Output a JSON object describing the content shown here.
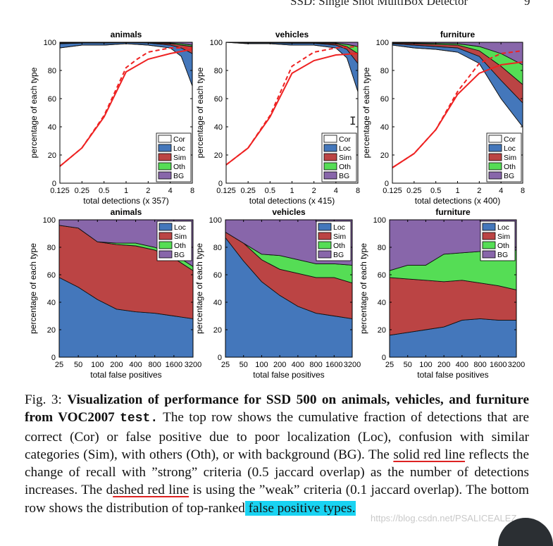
{
  "page_header": {
    "running_title": "SSD: Single Shot MultiBox Detector",
    "page_number": "9"
  },
  "colors": {
    "Cor": "#ffffff",
    "Loc": "#4477bb",
    "Sim": "#bb4444",
    "Oth": "#55dd55",
    "BG": "#8866aa",
    "recall": "#ee2222"
  },
  "chart_data": [
    {
      "type": "area",
      "row": "top",
      "title": "animals",
      "xlabel": "total detections (x 357)",
      "ylabel": "percentage of each type",
      "x_tick_labels": [
        "0.125",
        "0.25",
        "0.5",
        "1",
        "2",
        "4",
        "8"
      ],
      "x_log2": [
        -3,
        -2,
        -1,
        0,
        1,
        2,
        3
      ],
      "ylim": [
        0,
        100
      ],
      "y_ticks": [
        0,
        20,
        40,
        60,
        80,
        100
      ],
      "legend": [
        "Cor",
        "Loc",
        "Sim",
        "Oth",
        "BG"
      ],
      "legend_position": "bottom-right",
      "x": [
        -3,
        -2,
        -1,
        0,
        1,
        2,
        2.5,
        3
      ],
      "series": [
        {
          "name": "Cor",
          "values": [
            96,
            98,
            98,
            99,
            98,
            96,
            90,
            69
          ]
        },
        {
          "name": "Loc",
          "values": [
            3,
            1.5,
            1.5,
            0.8,
            1.5,
            2,
            6,
            23
          ]
        },
        {
          "name": "Sim",
          "values": [
            0.5,
            0.3,
            0.3,
            0.1,
            0.3,
            1,
            2,
            5
          ]
        },
        {
          "name": "Oth",
          "values": [
            0.3,
            0.1,
            0.1,
            0.05,
            0.1,
            0.5,
            1,
            1
          ]
        },
        {
          "name": "BG",
          "values": [
            0.2,
            0.1,
            0.1,
            0.05,
            0.1,
            0.5,
            1,
            2
          ]
        }
      ],
      "recall_strong": {
        "x": [
          -3,
          -2,
          -1,
          0,
          1,
          2,
          3
        ],
        "y": [
          12,
          25,
          47,
          79,
          88,
          92,
          95
        ]
      },
      "recall_weak": {
        "x": [
          -3,
          -2,
          -1,
          0,
          0.5,
          1,
          2,
          3
        ],
        "y": [
          12,
          25,
          48,
          82,
          88,
          93,
          96,
          96
        ]
      }
    },
    {
      "type": "area",
      "row": "top",
      "title": "vehicles",
      "xlabel": "total detections (x 415)",
      "ylabel": "percentage of each type",
      "x_tick_labels": [
        "0.125",
        "0.25",
        "0.5",
        "1",
        "2",
        "4",
        "8"
      ],
      "x_log2": [
        -3,
        -2,
        -1,
        0,
        1,
        2,
        3
      ],
      "ylim": [
        0,
        100
      ],
      "y_ticks": [
        0,
        20,
        40,
        60,
        80,
        100
      ],
      "legend": [
        "Cor",
        "Loc",
        "Sim",
        "Oth",
        "BG"
      ],
      "legend_position": "bottom-right",
      "x": [
        -3,
        -2,
        -1,
        0,
        1,
        2,
        2.5,
        3
      ],
      "series": [
        {
          "name": "Cor",
          "values": [
            100,
            99,
            99,
            98,
            98,
            96,
            89,
            65
          ]
        },
        {
          "name": "Loc",
          "values": [
            0,
            0.6,
            0.6,
            1.3,
            1.3,
            2,
            6,
            20
          ]
        },
        {
          "name": "Sim",
          "values": [
            0,
            0.2,
            0.2,
            0.3,
            0.3,
            1,
            2,
            7
          ]
        },
        {
          "name": "Oth",
          "values": [
            0,
            0.1,
            0.1,
            0.2,
            0.2,
            0.5,
            1.5,
            5
          ]
        },
        {
          "name": "BG",
          "values": [
            0,
            0.1,
            0.1,
            0.2,
            0.2,
            0.5,
            1.5,
            3
          ]
        }
      ],
      "recall_strong": {
        "x": [
          -3,
          -2,
          -1,
          0,
          1,
          2,
          3
        ],
        "y": [
          13,
          25,
          47,
          78,
          87,
          91,
          92
        ]
      },
      "recall_weak": {
        "x": [
          -3,
          -2,
          -1,
          0,
          0.5,
          1,
          2,
          3
        ],
        "y": [
          13,
          25,
          48,
          83,
          88,
          93,
          96,
          97
        ]
      }
    },
    {
      "type": "area",
      "row": "top",
      "title": "furniture",
      "xlabel": "total detections (x 400)",
      "ylabel": "percentage of each type",
      "x_tick_labels": [
        "0.125",
        "0.25",
        "0.5",
        "1",
        "2",
        "4",
        "8"
      ],
      "x_log2": [
        -3,
        -2,
        -1,
        0,
        1,
        2,
        3
      ],
      "ylim": [
        0,
        100
      ],
      "y_ticks": [
        0,
        20,
        40,
        60,
        80,
        100
      ],
      "legend": [
        "Cor",
        "Loc",
        "Sim",
        "Oth",
        "BG"
      ],
      "legend_position": "bottom-right",
      "x": [
        -3,
        -2,
        -1,
        0,
        1,
        2,
        3
      ],
      "series": [
        {
          "name": "Cor",
          "values": [
            98,
            96,
            95,
            93,
            85,
            60,
            40
          ]
        },
        {
          "name": "Loc",
          "values": [
            1,
            2,
            2,
            3,
            5,
            13,
            17
          ]
        },
        {
          "name": "Sim",
          "values": [
            0.5,
            1,
            1.5,
            2,
            4,
            10,
            13
          ]
        },
        {
          "name": "Oth",
          "values": [
            0.3,
            0.5,
            0.8,
            1,
            3,
            9,
            14
          ]
        },
        {
          "name": "BG",
          "values": [
            0.2,
            0.5,
            0.7,
            1,
            3,
            8,
            16
          ]
        }
      ],
      "recall_strong": {
        "x": [
          -3,
          -2,
          -1,
          0,
          1,
          2,
          3
        ],
        "y": [
          11,
          21,
          38,
          63,
          78,
          84,
          86
        ]
      },
      "recall_weak": {
        "x": [
          -3,
          -2,
          -1,
          0,
          1,
          2,
          3
        ],
        "y": [
          11,
          21,
          38,
          65,
          85,
          92,
          94
        ]
      }
    },
    {
      "type": "area",
      "row": "bottom",
      "title": "animals",
      "xlabel": "total false positives",
      "ylabel": "percentage of each type",
      "x_tick_labels": [
        "25",
        "50",
        "100",
        "200",
        "400",
        "800",
        "1600",
        "3200"
      ],
      "ylim": [
        0,
        100
      ],
      "y_ticks": [
        0,
        20,
        40,
        60,
        80,
        100
      ],
      "legend": [
        "Loc",
        "Sim",
        "Oth",
        "BG"
      ],
      "legend_position": "top-right",
      "x": [
        0,
        1,
        2,
        3,
        4,
        5,
        6,
        7
      ],
      "series": [
        {
          "name": "Loc",
          "values": [
            58,
            51,
            42,
            35,
            33,
            32,
            30,
            28
          ]
        },
        {
          "name": "Sim",
          "values": [
            38,
            43,
            42,
            47,
            48,
            46,
            42,
            35
          ]
        },
        {
          "name": "Oth",
          "values": [
            0,
            0,
            0,
            1,
            2,
            2,
            3,
            3
          ]
        },
        {
          "name": "BG",
          "values": [
            4,
            6,
            16,
            17,
            17,
            20,
            25,
            34
          ]
        }
      ]
    },
    {
      "type": "area",
      "row": "bottom",
      "title": "vehicles",
      "xlabel": "total false positives",
      "ylabel": "percentage of each type",
      "x_tick_labels": [
        "25",
        "50",
        "100",
        "200",
        "400",
        "800",
        "1600",
        "3200"
      ],
      "ylim": [
        0,
        100
      ],
      "y_ticks": [
        0,
        20,
        40,
        60,
        80,
        100
      ],
      "legend": [
        "Loc",
        "Sim",
        "Oth",
        "BG"
      ],
      "legend_position": "top-right",
      "x": [
        0,
        1,
        2,
        3,
        4,
        5,
        6,
        7
      ],
      "series": [
        {
          "name": "Loc",
          "values": [
            87,
            70,
            55,
            45,
            37,
            32,
            30,
            28
          ]
        },
        {
          "name": "Sim",
          "values": [
            4,
            13,
            16,
            19,
            24,
            26,
            28,
            26
          ]
        },
        {
          "name": "Oth",
          "values": [
            0,
            0,
            4,
            10,
            10,
            10,
            10,
            13
          ]
        },
        {
          "name": "BG",
          "values": [
            9,
            17,
            25,
            26,
            29,
            32,
            32,
            33
          ]
        }
      ]
    },
    {
      "type": "area",
      "row": "bottom",
      "title": "furniture",
      "xlabel": "total false positives",
      "ylabel": "percentage of each type",
      "x_tick_labels": [
        "25",
        "50",
        "100",
        "200",
        "400",
        "800",
        "1600",
        "3200"
      ],
      "ylim": [
        0,
        100
      ],
      "y_ticks": [
        0,
        20,
        40,
        60,
        80,
        100
      ],
      "legend": [
        "Loc",
        "Sim",
        "Oth",
        "BG"
      ],
      "legend_position": "top-right",
      "x": [
        0,
        1,
        2,
        3,
        4,
        5,
        6,
        7
      ],
      "series": [
        {
          "name": "Loc",
          "values": [
            16,
            18,
            20,
            22,
            27,
            28,
            27,
            27
          ]
        },
        {
          "name": "Sim",
          "values": [
            42,
            39,
            36,
            33,
            29,
            26,
            25,
            22
          ]
        },
        {
          "name": "Oth",
          "values": [
            5,
            10,
            11,
            20,
            20,
            23,
            26,
            29
          ]
        },
        {
          "name": "BG",
          "values": [
            37,
            33,
            33,
            25,
            24,
            23,
            22,
            22
          ]
        }
      ]
    }
  ],
  "caption": {
    "label": "Fig. 3: ",
    "bold_title": "Visualization of performance for SSD 500 on animals, vehicles, and furniture from VOC2007 ",
    "bold_code": "test.",
    "text_1": " The top row shows the cumulative fraction of detections that are correct (Cor) or false positive due to poor localization (Loc), confusion with similar categories (Sim), with others (Oth), or with background (BG). The ",
    "underline_1": "solid red line",
    "text_2": " reflects the change of recall with ”strong” criteria (0.5 jaccard overlap) as the number of detections increases. The ",
    "text_3_prefix": "d",
    "underline_2": "ashed red line",
    "text_4": " is using the ”weak” criteria (0.1 jaccard overlap). The bottom row shows the distribution of top-ranked",
    "highlight": " false positive types."
  },
  "watermark": "https://blog.csdn.net/PSALICEALEZ"
}
